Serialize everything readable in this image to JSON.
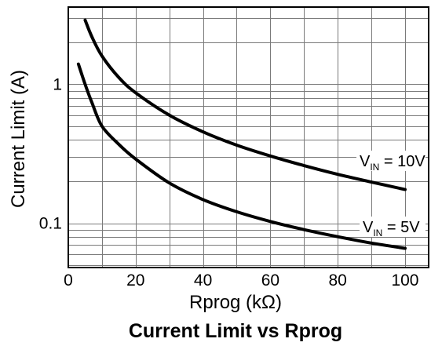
{
  "chart_data": {
    "type": "line",
    "title": "Current Limit vs Rprog",
    "xlabel": "Rprog (kΩ)",
    "ylabel": "Current Limit (A)",
    "xlim": [
      0,
      107
    ],
    "ylim": [
      0.048,
      3.6
    ],
    "yscale": "log",
    "grid": true,
    "x_ticks": [
      0,
      20,
      40,
      60,
      80,
      100
    ],
    "x_tick_labels": [
      "0",
      "20",
      "40",
      "60",
      "80",
      "100"
    ],
    "y_ticks": [
      0.1,
      1
    ],
    "y_tick_labels": [
      "0.1",
      "1"
    ],
    "series": [
      {
        "name_prefix": "V",
        "name_sub": "IN",
        "name_suffix": " = 10V",
        "x": [
          5,
          7,
          10,
          15,
          20,
          30,
          40,
          50,
          60,
          70,
          80,
          90,
          100
        ],
        "y": [
          2.9,
          2.2,
          1.6,
          1.12,
          0.87,
          0.6,
          0.455,
          0.365,
          0.305,
          0.26,
          0.225,
          0.198,
          0.175
        ]
      },
      {
        "name_prefix": "V",
        "name_sub": "IN",
        "name_suffix": " = 5V",
        "x": [
          3,
          5,
          7,
          10,
          15,
          20,
          30,
          40,
          50,
          60,
          70,
          80,
          90,
          100
        ],
        "y": [
          1.4,
          1.0,
          0.74,
          0.5,
          0.37,
          0.29,
          0.195,
          0.148,
          0.121,
          0.103,
          0.09,
          0.08,
          0.072,
          0.066
        ]
      }
    ]
  }
}
